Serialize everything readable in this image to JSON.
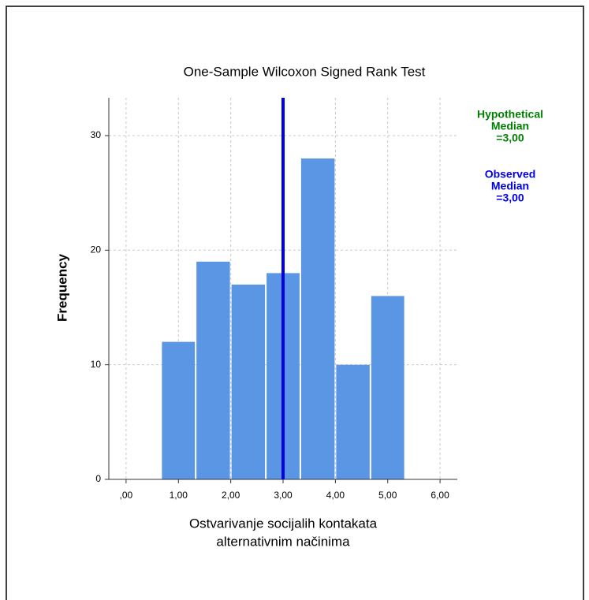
{
  "chart_data": {
    "type": "histogram",
    "title": "One-Sample Wilcoxon Signed Rank Test",
    "x_label": [
      "Ostvarivanje socijalih kontakata",
      "alternativnim načinima"
    ],
    "y_label": "Frequency",
    "bins": [
      0.67,
      1.33,
      2,
      2.67,
      3.33,
      4,
      4.67,
      5.33
    ],
    "values": [
      12,
      19,
      17,
      18,
      28,
      10,
      16
    ],
    "color": "#5b96e4",
    "xlim": [
      -0.33,
      6.33
    ],
    "ylim": [
      0,
      33.3
    ],
    "xticks": [
      {
        "value": 0,
        "label": ",00"
      },
      {
        "value": 1,
        "label": "1,00"
      },
      {
        "value": 2,
        "label": "2,00"
      },
      {
        "value": 3,
        "label": "3,00"
      },
      {
        "value": 4,
        "label": "4,00"
      },
      {
        "value": 5,
        "label": "5,00"
      },
      {
        "value": 6,
        "label": "6,00"
      }
    ],
    "yticks": [
      0,
      10,
      20,
      30
    ],
    "grid": true,
    "hypothetical_median": 3,
    "hypothetical_color": "#008000",
    "observed_median": 3,
    "observed_color": "#0000e6",
    "annotations": [
      [
        "Hypothetical",
        "Median",
        "=3,00"
      ],
      [
        "Observed",
        "Median",
        "=3,00"
      ]
    ]
  }
}
